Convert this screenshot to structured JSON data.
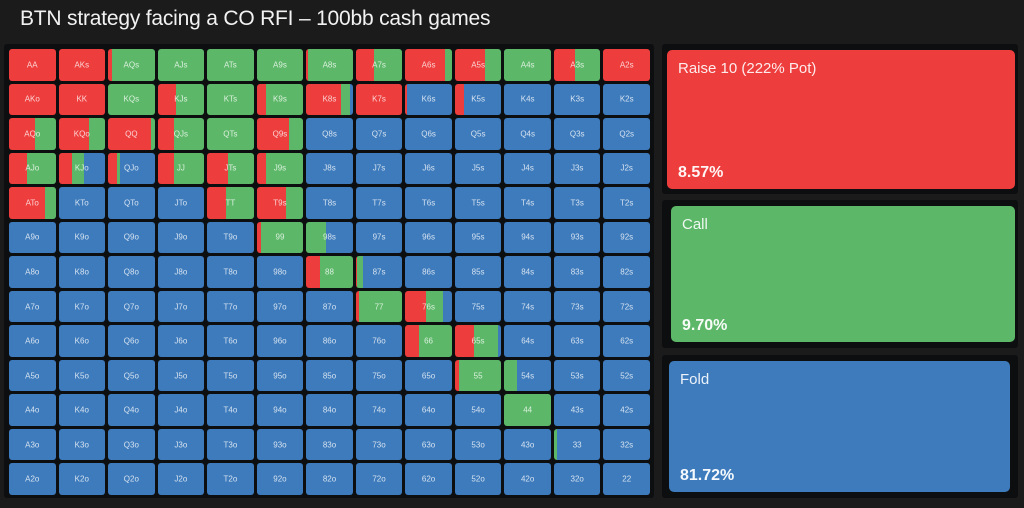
{
  "title": "BTN strategy facing a CO RFI – 100bb cash games",
  "colors": {
    "raise": "#ee3d3d",
    "call": "#5cb868",
    "fold": "#3e7bbc",
    "background": "#1b1b1c"
  },
  "actions": [
    {
      "name": "Raise 10 (222% Pot)",
      "pct": "8.57%",
      "color": "#ee3d3d"
    },
    {
      "name": "Call",
      "pct": "9.70%",
      "color": "#5cb868"
    },
    {
      "name": "Fold",
      "pct": "81.72%",
      "color": "#3e7bbc"
    }
  ],
  "grid": [
    [
      [
        "AA",
        100,
        0,
        0
      ],
      [
        "AKs",
        100,
        0,
        0
      ],
      [
        "AQs",
        8,
        92,
        0
      ],
      [
        "AJs",
        0,
        100,
        0
      ],
      [
        "ATs",
        0,
        100,
        0
      ],
      [
        "A9s",
        0,
        100,
        0
      ],
      [
        "A8s",
        3,
        97,
        0
      ],
      [
        "A7s",
        40,
        60,
        0
      ],
      [
        "A6s",
        85,
        15,
        0
      ],
      [
        "A5s",
        65,
        35,
        0
      ],
      [
        "A4s",
        0,
        100,
        0
      ],
      [
        "A3s",
        45,
        55,
        0
      ],
      [
        "A2s",
        100,
        0,
        0
      ]
    ],
    [
      [
        "AKo",
        100,
        0,
        0
      ],
      [
        "KK",
        100,
        0,
        0
      ],
      [
        "KQs",
        0,
        100,
        0
      ],
      [
        "KJs",
        40,
        60,
        0
      ],
      [
        "KTs",
        0,
        100,
        0
      ],
      [
        "K9s",
        20,
        80,
        0
      ],
      [
        "K8s",
        75,
        18,
        7
      ],
      [
        "K7s",
        100,
        0,
        0
      ],
      [
        "K6s",
        3,
        0,
        97
      ],
      [
        "K5s",
        20,
        0,
        80
      ],
      [
        "K4s",
        0,
        0,
        100
      ],
      [
        "K3s",
        0,
        0,
        100
      ],
      [
        "K2s",
        0,
        0,
        100
      ]
    ],
    [
      [
        "AQo",
        55,
        45,
        0
      ],
      [
        "KQo",
        65,
        35,
        0
      ],
      [
        "QQ",
        92,
        8,
        0
      ],
      [
        "QJs",
        35,
        65,
        0
      ],
      [
        "QTs",
        0,
        100,
        0
      ],
      [
        "Q9s",
        70,
        30,
        0
      ],
      [
        "Q8s",
        0,
        0,
        100
      ],
      [
        "Q7s",
        0,
        0,
        100
      ],
      [
        "Q6s",
        0,
        0,
        100
      ],
      [
        "Q5s",
        0,
        0,
        100
      ],
      [
        "Q4s",
        0,
        0,
        100
      ],
      [
        "Q3s",
        0,
        0,
        100
      ],
      [
        "Q2s",
        0,
        0,
        100
      ]
    ],
    [
      [
        "AJo",
        38,
        62,
        0
      ],
      [
        "KJo",
        30,
        25,
        45
      ],
      [
        "QJo",
        20,
        5,
        75
      ],
      [
        "JJ",
        35,
        65,
        0
      ],
      [
        "JTs",
        45,
        55,
        0
      ],
      [
        "J9s",
        20,
        80,
        0
      ],
      [
        "J8s",
        0,
        0,
        100
      ],
      [
        "J7s",
        0,
        0,
        100
      ],
      [
        "J6s",
        0,
        0,
        100
      ],
      [
        "J5s",
        0,
        0,
        100
      ],
      [
        "J4s",
        0,
        0,
        100
      ],
      [
        "J3s",
        0,
        0,
        100
      ],
      [
        "J2s",
        0,
        0,
        100
      ]
    ],
    [
      [
        "ATo",
        78,
        22,
        0
      ],
      [
        "KTo",
        0,
        0,
        100
      ],
      [
        "QTo",
        0,
        0,
        100
      ],
      [
        "JTo",
        0,
        0,
        100
      ],
      [
        "TT",
        40,
        60,
        0
      ],
      [
        "T9s",
        62,
        38,
        0
      ],
      [
        "T8s",
        0,
        0,
        100
      ],
      [
        "T7s",
        0,
        0,
        100
      ],
      [
        "T6s",
        0,
        0,
        100
      ],
      [
        "T5s",
        0,
        0,
        100
      ],
      [
        "T4s",
        0,
        0,
        100
      ],
      [
        "T3s",
        0,
        0,
        100
      ],
      [
        "T2s",
        0,
        0,
        100
      ]
    ],
    [
      [
        "A9o",
        0,
        0,
        100
      ],
      [
        "K9o",
        0,
        0,
        100
      ],
      [
        "Q9o",
        0,
        0,
        100
      ],
      [
        "J9o",
        0,
        0,
        100
      ],
      [
        "T9o",
        0,
        0,
        100
      ],
      [
        "99",
        10,
        90,
        0
      ],
      [
        "98s",
        0,
        42,
        58
      ],
      [
        "97s",
        0,
        0,
        100
      ],
      [
        "96s",
        0,
        0,
        100
      ],
      [
        "95s",
        0,
        0,
        100
      ],
      [
        "94s",
        0,
        0,
        100
      ],
      [
        "93s",
        0,
        0,
        100
      ],
      [
        "92s",
        0,
        0,
        100
      ]
    ],
    [
      [
        "A8o",
        0,
        0,
        100
      ],
      [
        "K8o",
        0,
        0,
        100
      ],
      [
        "Q8o",
        0,
        0,
        100
      ],
      [
        "J8o",
        0,
        0,
        100
      ],
      [
        "T8o",
        0,
        0,
        100
      ],
      [
        "98o",
        0,
        0,
        100
      ],
      [
        "88",
        30,
        70,
        0
      ],
      [
        "87s",
        3,
        12,
        85
      ],
      [
        "86s",
        0,
        0,
        100
      ],
      [
        "85s",
        0,
        0,
        100
      ],
      [
        "84s",
        0,
        0,
        100
      ],
      [
        "83s",
        0,
        0,
        100
      ],
      [
        "82s",
        0,
        0,
        100
      ]
    ],
    [
      [
        "A7o",
        0,
        0,
        100
      ],
      [
        "K7o",
        0,
        0,
        100
      ],
      [
        "Q7o",
        0,
        0,
        100
      ],
      [
        "J7o",
        0,
        0,
        100
      ],
      [
        "T7o",
        0,
        0,
        100
      ],
      [
        "97o",
        0,
        0,
        100
      ],
      [
        "87o",
        0,
        0,
        100
      ],
      [
        "77",
        8,
        92,
        0
      ],
      [
        "76s",
        45,
        35,
        20
      ],
      [
        "75s",
        0,
        0,
        100
      ],
      [
        "74s",
        0,
        0,
        100
      ],
      [
        "73s",
        0,
        0,
        100
      ],
      [
        "72s",
        0,
        0,
        100
      ]
    ],
    [
      [
        "A6o",
        0,
        0,
        100
      ],
      [
        "K6o",
        0,
        0,
        100
      ],
      [
        "Q6o",
        0,
        0,
        100
      ],
      [
        "J6o",
        0,
        0,
        100
      ],
      [
        "T6o",
        0,
        0,
        100
      ],
      [
        "96o",
        0,
        0,
        100
      ],
      [
        "86o",
        0,
        0,
        100
      ],
      [
        "76o",
        0,
        0,
        100
      ],
      [
        "66",
        30,
        70,
        0
      ],
      [
        "65s",
        42,
        50,
        8
      ],
      [
        "64s",
        0,
        0,
        100
      ],
      [
        "63s",
        0,
        0,
        100
      ],
      [
        "62s",
        0,
        0,
        100
      ]
    ],
    [
      [
        "A5o",
        0,
        0,
        100
      ],
      [
        "K5o",
        0,
        0,
        100
      ],
      [
        "Q5o",
        0,
        0,
        100
      ],
      [
        "J5o",
        0,
        0,
        100
      ],
      [
        "T5o",
        0,
        0,
        100
      ],
      [
        "95o",
        0,
        0,
        100
      ],
      [
        "85o",
        0,
        0,
        100
      ],
      [
        "75o",
        0,
        0,
        100
      ],
      [
        "65o",
        0,
        0,
        100
      ],
      [
        "55",
        8,
        92,
        0
      ],
      [
        "54s",
        0,
        28,
        72
      ],
      [
        "53s",
        0,
        0,
        100
      ],
      [
        "52s",
        0,
        0,
        100
      ]
    ],
    [
      [
        "A4o",
        0,
        0,
        100
      ],
      [
        "K4o",
        0,
        0,
        100
      ],
      [
        "Q4o",
        0,
        0,
        100
      ],
      [
        "J4o",
        0,
        0,
        100
      ],
      [
        "T4o",
        0,
        0,
        100
      ],
      [
        "94o",
        0,
        0,
        100
      ],
      [
        "84o",
        0,
        0,
        100
      ],
      [
        "74o",
        0,
        0,
        100
      ],
      [
        "64o",
        0,
        0,
        100
      ],
      [
        "54o",
        0,
        0,
        100
      ],
      [
        "44",
        0,
        100,
        0
      ],
      [
        "43s",
        0,
        0,
        100
      ],
      [
        "42s",
        0,
        0,
        100
      ]
    ],
    [
      [
        "A3o",
        0,
        0,
        100
      ],
      [
        "K3o",
        0,
        0,
        100
      ],
      [
        "Q3o",
        0,
        0,
        100
      ],
      [
        "J3o",
        0,
        0,
        100
      ],
      [
        "T3o",
        0,
        0,
        100
      ],
      [
        "93o",
        0,
        0,
        100
      ],
      [
        "83o",
        0,
        0,
        100
      ],
      [
        "73o",
        0,
        0,
        100
      ],
      [
        "63o",
        0,
        0,
        100
      ],
      [
        "53o",
        0,
        0,
        100
      ],
      [
        "43o",
        0,
        0,
        100
      ],
      [
        "33",
        0,
        6,
        94
      ],
      [
        "32s",
        0,
        0,
        100
      ]
    ],
    [
      [
        "A2o",
        0,
        0,
        100
      ],
      [
        "K2o",
        0,
        0,
        100
      ],
      [
        "Q2o",
        0,
        0,
        100
      ],
      [
        "J2o",
        0,
        0,
        100
      ],
      [
        "T2o",
        0,
        0,
        100
      ],
      [
        "92o",
        0,
        0,
        100
      ],
      [
        "82o",
        0,
        0,
        100
      ],
      [
        "72o",
        0,
        0,
        100
      ],
      [
        "62o",
        0,
        0,
        100
      ],
      [
        "52o",
        0,
        0,
        100
      ],
      [
        "42o",
        0,
        0,
        100
      ],
      [
        "32o",
        0,
        0,
        100
      ],
      [
        "22",
        0,
        0,
        100
      ]
    ]
  ]
}
